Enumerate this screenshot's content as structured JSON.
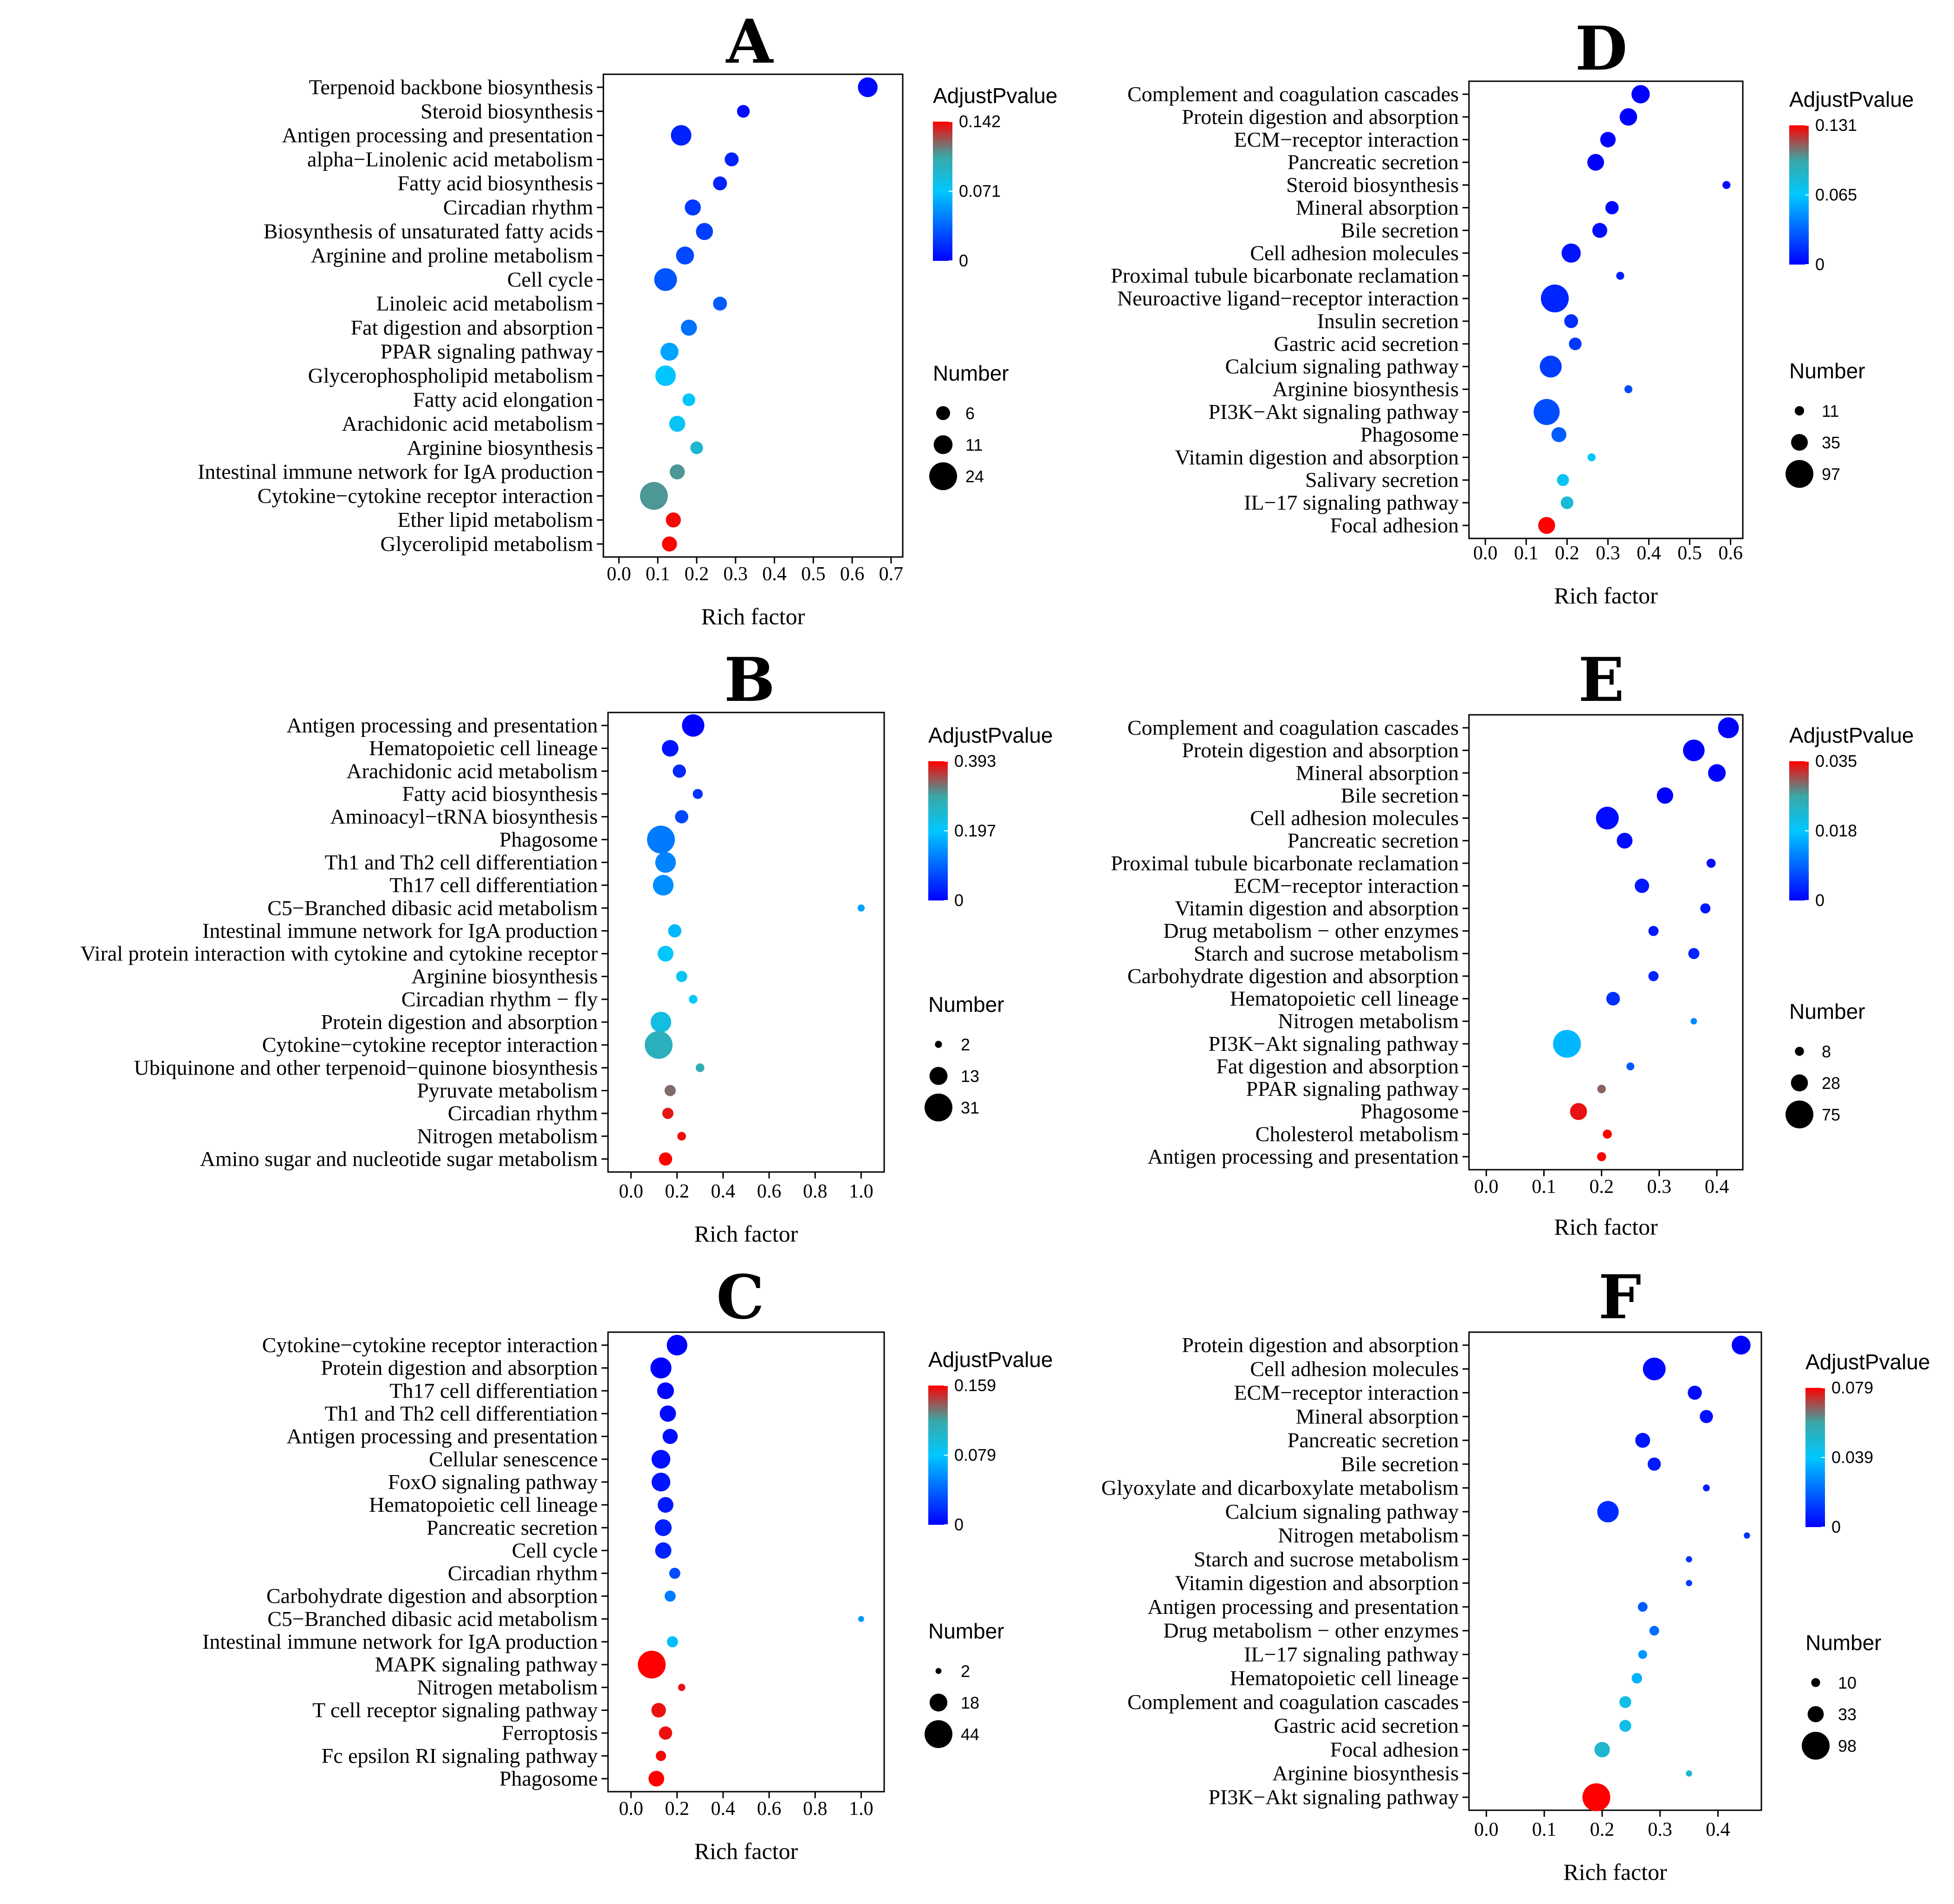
{
  "chart_data": [
    {
      "panel": "A",
      "type": "scatter",
      "xlabel": "Rich factor",
      "xlim": [
        -0.04,
        0.73
      ],
      "xticks": [
        "0.0",
        "0.1",
        "0.2",
        "0.3",
        "0.4",
        "0.5",
        "0.6",
        "0.7"
      ],
      "color_legend": {
        "title": "AdjustPvalue",
        "max": 0.142,
        "labels": [
          "0.142",
          "0.071",
          "0"
        ]
      },
      "size_legend": {
        "title": "Number",
        "labels": [
          "6",
          "11",
          "24"
        ],
        "values": [
          6,
          11,
          24
        ]
      },
      "terms": [
        "Terpenoid backbone biosynthesis",
        "Steroid biosynthesis",
        "Antigen processing and presentation",
        "alpha−Linolenic acid metabolism",
        "Fatty acid biosynthesis",
        "Circadian rhythm",
        "Biosynthesis of unsaturated fatty acids",
        "Arginine and proline metabolism",
        "Cell cycle",
        "Linoleic acid metabolism",
        "Fat digestion and absorption",
        "PPAR signaling pathway",
        "Glycerophospholipid metabolism",
        "Fatty acid elongation",
        "Arachidonic acid metabolism",
        "Arginine biosynthesis",
        "Intestinal immune network for IgA production",
        "Cytokine−cytokine receptor interaction",
        "Ether lipid metabolism",
        "Glycerolipid metabolism"
      ],
      "rich_factor": [
        0.64,
        0.32,
        0.16,
        0.29,
        0.26,
        0.19,
        0.22,
        0.17,
        0.12,
        0.26,
        0.18,
        0.13,
        0.12,
        0.18,
        0.15,
        0.2,
        0.15,
        0.09,
        0.14,
        0.13
      ],
      "number": [
        12,
        5,
        13,
        6,
        6,
        8,
        9,
        10,
        16,
        6,
        8,
        10,
        13,
        5,
        8,
        5,
        7,
        24,
        7,
        7
      ],
      "adjust_pvalue": [
        0.003,
        0.004,
        0.012,
        0.012,
        0.012,
        0.02,
        0.022,
        0.026,
        0.03,
        0.032,
        0.04,
        0.058,
        0.07,
        0.07,
        0.075,
        0.09,
        0.11,
        0.11,
        0.14,
        0.142
      ]
    },
    {
      "panel": "B",
      "type": "scatter",
      "xlabel": "Rich factor",
      "xlim": [
        -0.1,
        1.1
      ],
      "xticks": [
        "0.0",
        "0.2",
        "0.4",
        "0.6",
        "0.8",
        "1.0"
      ],
      "color_legend": {
        "title": "AdjustPvalue",
        "max": 0.393,
        "labels": [
          "0.393",
          "0.197",
          "0"
        ]
      },
      "size_legend": {
        "title": "Number",
        "labels": [
          "2",
          "13",
          "31"
        ],
        "values": [
          2,
          13,
          31
        ]
      },
      "terms": [
        "Antigen processing and presentation",
        "Hematopoietic cell lineage",
        "Arachidonic acid metabolism",
        "Fatty acid biosynthesis",
        "Aminoacyl−tRNA biosynthesis",
        "Phagosome",
        "Th1 and Th2 cell differentiation",
        "Th17 cell differentiation",
        "C5−Branched dibasic acid metabolism",
        "Intestinal immune network for IgA production",
        "Viral protein interaction with cytokine and cytokine receptor",
        "Arginine biosynthesis",
        "Circadian rhythm − fly",
        "Protein digestion and absorption",
        "Cytokine−cytokine receptor interaction",
        "Ubiquinone and other terpenoid−quinone biosynthesis",
        "Pyruvate metabolism",
        "Circadian rhythm",
        "Nitrogen metabolism",
        "Amino sugar and nucleotide sugar metabolism"
      ],
      "rich_factor": [
        0.27,
        0.17,
        0.21,
        0.29,
        0.22,
        0.13,
        0.15,
        0.14,
        1.0,
        0.19,
        0.15,
        0.22,
        0.27,
        0.13,
        0.12,
        0.3,
        0.17,
        0.16,
        0.22,
        0.15
      ],
      "number": [
        20,
        11,
        7,
        4,
        7,
        31,
        17,
        17,
        2,
        7,
        10,
        5,
        3,
        17,
        31,
        3,
        5,
        5,
        3,
        7
      ],
      "adjust_pvalue": [
        0.0,
        0.02,
        0.04,
        0.05,
        0.07,
        0.12,
        0.13,
        0.14,
        0.16,
        0.18,
        0.2,
        0.21,
        0.2,
        0.23,
        0.27,
        0.28,
        0.33,
        0.38,
        0.39,
        0.393
      ]
    },
    {
      "panel": "C",
      "type": "scatter",
      "xlabel": "Rich factor",
      "xlim": [
        -0.1,
        1.1
      ],
      "xticks": [
        "0.0",
        "0.2",
        "0.4",
        "0.6",
        "0.8",
        "1.0"
      ],
      "color_legend": {
        "title": "AdjustPvalue",
        "max": 0.159,
        "labels": [
          "0.159",
          "0.079",
          "0"
        ]
      },
      "size_legend": {
        "title": "Number",
        "labels": [
          "2",
          "18",
          "44"
        ],
        "values": [
          2,
          18,
          44
        ]
      },
      "terms": [
        "Cytokine−cytokine receptor interaction",
        "Protein digestion and absorption",
        "Th17 cell differentiation",
        "Th1 and Th2 cell differentiation",
        "Antigen processing and presentation",
        "Cellular senescence",
        "FoxO signaling pathway",
        "Hematopoietic cell lineage",
        "Pancreatic secretion",
        "Cell cycle",
        "Circadian rhythm",
        "Carbohydrate digestion and absorption",
        "C5−Branched dibasic acid metabolism",
        "Intestinal immune network for IgA production",
        "MAPK signaling pathway",
        "Nitrogen metabolism",
        "T cell receptor signaling pathway",
        "Ferroptosis",
        "Fc epsilon RI signaling pathway",
        "Phagosome"
      ],
      "rich_factor": [
        0.2,
        0.13,
        0.15,
        0.16,
        0.17,
        0.13,
        0.13,
        0.15,
        0.14,
        0.14,
        0.19,
        0.17,
        1.0,
        0.18,
        0.09,
        0.22,
        0.12,
        0.15,
        0.13,
        0.11
      ],
      "number": [
        24,
        25,
        16,
        15,
        13,
        20,
        20,
        14,
        16,
        15,
        7,
        7,
        2,
        7,
        44,
        3,
        12,
        10,
        6,
        14
      ],
      "adjust_pvalue": [
        0.0,
        0.0,
        0.002,
        0.003,
        0.005,
        0.006,
        0.008,
        0.01,
        0.012,
        0.014,
        0.03,
        0.05,
        0.06,
        0.075,
        0.159,
        0.155,
        0.155,
        0.156,
        0.157,
        0.159
      ]
    },
    {
      "panel": "D",
      "type": "scatter",
      "xlabel": "Rich factor",
      "xlim": [
        -0.04,
        0.63
      ],
      "xticks": [
        "0.0",
        "0.1",
        "0.2",
        "0.3",
        "0.4",
        "0.5",
        "0.6"
      ],
      "color_legend": {
        "title": "AdjustPvalue",
        "max": 0.131,
        "labels": [
          "0.131",
          "0.065",
          "0"
        ]
      },
      "size_legend": {
        "title": "Number",
        "labels": [
          "11",
          "35",
          "97"
        ],
        "values": [
          11,
          35,
          97
        ]
      },
      "terms": [
        "Complement and coagulation cascades",
        "Protein digestion and absorption",
        "ECM−receptor interaction",
        "Pancreatic secretion",
        "Steroid biosynthesis",
        "Mineral absorption",
        "Bile secretion",
        "Cell adhesion molecules",
        "Proximal tubule bicarbonate reclamation",
        "Neuroactive ligand−receptor interaction",
        "Insulin secretion",
        "Gastric acid secretion",
        "Calcium signaling pathway",
        "Arginine biosynthesis",
        "PI3K−Akt signaling pathway",
        "Phagosome",
        "Vitamin digestion and absorption",
        "Salivary secretion",
        "IL−17 signaling pathway",
        "Focal adhesion"
      ],
      "rich_factor": [
        0.38,
        0.35,
        0.3,
        0.27,
        0.59,
        0.31,
        0.28,
        0.21,
        0.33,
        0.17,
        0.21,
        0.22,
        0.16,
        0.35,
        0.15,
        0.18,
        0.26,
        0.19,
        0.2,
        0.15
      ],
      "number": [
        42,
        38,
        30,
        35,
        8,
        22,
        28,
        46,
        8,
        97,
        24,
        20,
        60,
        8,
        85,
        28,
        8,
        18,
        20,
        36
      ],
      "adjust_pvalue": [
        0.0,
        0.0,
        0.0,
        0.0,
        0.002,
        0.002,
        0.004,
        0.006,
        0.01,
        0.012,
        0.015,
        0.018,
        0.02,
        0.025,
        0.025,
        0.03,
        0.065,
        0.07,
        0.08,
        0.131
      ]
    },
    {
      "panel": "E",
      "type": "scatter",
      "xlabel": "Rich factor",
      "xlim": [
        -0.03,
        0.445
      ],
      "xticks": [
        "0.0",
        "0.1",
        "0.2",
        "0.3",
        "0.4"
      ],
      "color_legend": {
        "title": "AdjustPvalue",
        "max": 0.035,
        "labels": [
          "0.035",
          "0.018",
          "0"
        ]
      },
      "size_legend": {
        "title": "Number",
        "labels": [
          "8",
          "28",
          "75"
        ],
        "values": [
          8,
          28,
          75
        ]
      },
      "terms": [
        "Complement and coagulation cascades",
        "Protein digestion and absorption",
        "Mineral absorption",
        "Bile secretion",
        "Cell adhesion molecules",
        "Pancreatic secretion",
        "Proximal tubule bicarbonate reclamation",
        "ECM−receptor interaction",
        "Vitamin digestion and absorption",
        "Drug metabolism − other enzymes",
        "Starch and sucrose metabolism",
        "Carbohydrate digestion and absorption",
        "Hematopoietic cell lineage",
        "Nitrogen metabolism",
        "PI3K−Akt signaling pathway",
        "Fat digestion and absorption",
        "PPAR signaling pathway",
        "Phagosome",
        "Cholesterol metabolism",
        "Antigen processing and presentation"
      ],
      "rich_factor": [
        0.42,
        0.36,
        0.4,
        0.31,
        0.21,
        0.24,
        0.39,
        0.27,
        0.38,
        0.29,
        0.36,
        0.29,
        0.22,
        0.36,
        0.14,
        0.25,
        0.2,
        0.16,
        0.21,
        0.2
      ],
      "number": [
        42,
        45,
        30,
        26,
        50,
        24,
        8,
        20,
        10,
        10,
        12,
        10,
        18,
        4,
        75,
        6,
        7,
        28,
        8,
        8
      ],
      "adjust_pvalue": [
        0.0,
        0.0,
        0.0,
        0.0,
        0.001,
        0.001,
        0.001,
        0.002,
        0.002,
        0.002,
        0.003,
        0.003,
        0.004,
        0.012,
        0.016,
        0.008,
        0.03,
        0.034,
        0.035,
        0.035
      ]
    },
    {
      "panel": "F",
      "type": "scatter",
      "xlabel": "Rich factor",
      "xlim": [
        -0.03,
        0.475
      ],
      "xticks": [
        "0.0",
        "0.1",
        "0.2",
        "0.3",
        "0.4"
      ],
      "color_legend": {
        "title": "AdjustPvalue",
        "max": 0.079,
        "labels": [
          "0.079",
          "0.039",
          "0"
        ]
      },
      "size_legend": {
        "title": "Number",
        "labels": [
          "10",
          "33",
          "98"
        ],
        "values": [
          10,
          33,
          98
        ]
      },
      "terms": [
        "Protein digestion and absorption",
        "Cell adhesion molecules",
        "ECM−receptor interaction",
        "Mineral absorption",
        "Pancreatic secretion",
        "Bile secretion",
        "Glyoxylate and dicarboxylate metabolism",
        "Calcium signaling pathway",
        "Nitrogen metabolism",
        "Starch and sucrose metabolism",
        "Vitamin digestion and absorption",
        "Antigen processing and presentation",
        "Drug metabolism − other enzymes",
        "IL−17 signaling pathway",
        "Hematopoietic cell lineage",
        "Complement and coagulation cascades",
        "Gastric acid secretion",
        "Focal adhesion",
        "Arginine biosynthesis",
        "PI3K−Akt signaling pathway"
      ],
      "rich_factor": [
        0.44,
        0.29,
        0.36,
        0.38,
        0.27,
        0.29,
        0.38,
        0.21,
        0.45,
        0.35,
        0.35,
        0.27,
        0.29,
        0.27,
        0.26,
        0.24,
        0.24,
        0.2,
        0.35,
        0.19
      ],
      "number": [
        45,
        65,
        25,
        22,
        28,
        22,
        6,
        58,
        5,
        5,
        5,
        12,
        12,
        10,
        14,
        18,
        18,
        30,
        5,
        98
      ],
      "adjust_pvalue": [
        0.0,
        0.002,
        0.002,
        0.003,
        0.004,
        0.005,
        0.006,
        0.008,
        0.01,
        0.01,
        0.012,
        0.018,
        0.022,
        0.03,
        0.035,
        0.045,
        0.045,
        0.05,
        0.05,
        0.079
      ]
    }
  ]
}
